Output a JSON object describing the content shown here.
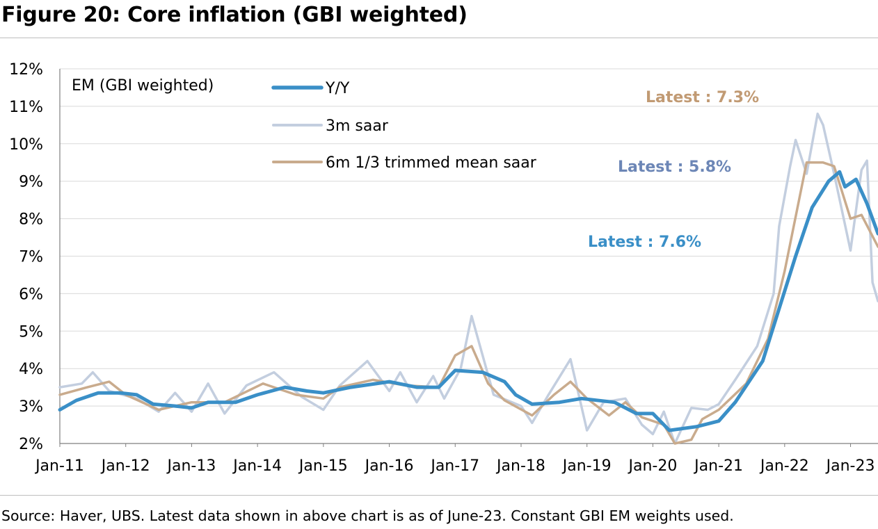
{
  "figure_title": "Figure 20: Core inflation (GBI weighted)",
  "source_note": "Source: Haver, UBS. Latest data shown in above chart is as of June-23. Constant GBI EM weights used.",
  "chart_data": {
    "type": "line",
    "title": "Figure 20: Core inflation (GBI weighted)",
    "panel_label": "EM (GBI weighted)",
    "xlabel": "",
    "ylabel": "",
    "x_start": "Jan-11",
    "x_end": "Jun-23",
    "x_ticks": [
      "Jan-11",
      "Jan-12",
      "Jan-13",
      "Jan-14",
      "Jan-15",
      "Jan-16",
      "Jan-17",
      "Jan-18",
      "Jan-19",
      "Jan-20",
      "Jan-21",
      "Jan-22",
      "Jan-23"
    ],
    "y_ticks": [
      "2%",
      "3%",
      "4%",
      "5%",
      "6%",
      "7%",
      "8%",
      "9%",
      "10%",
      "11%",
      "12%"
    ],
    "ylim": [
      2,
      12
    ],
    "grid": true,
    "legend_position": "top-left",
    "series": [
      {
        "name": "Y/Y",
        "color": "#3a8fc7",
        "width": 5,
        "points": [
          [
            "Jan-11",
            2.9
          ],
          [
            "Apr-11",
            3.15
          ],
          [
            "Aug-11",
            3.35
          ],
          [
            "Dec-11",
            3.35
          ],
          [
            "Mar-12",
            3.3
          ],
          [
            "Jun-12",
            3.05
          ],
          [
            "Oct-12",
            3.0
          ],
          [
            "Jan-13",
            2.95
          ],
          [
            "Apr-13",
            3.1
          ],
          [
            "Sep-13",
            3.1
          ],
          [
            "Jan-14",
            3.3
          ],
          [
            "Jun-14",
            3.5
          ],
          [
            "Oct-14",
            3.4
          ],
          [
            "Jan-15",
            3.35
          ],
          [
            "Jun-15",
            3.5
          ],
          [
            "Jan-16",
            3.65
          ],
          [
            "Jun-16",
            3.5
          ],
          [
            "Oct-16",
            3.5
          ],
          [
            "Jan-17",
            3.95
          ],
          [
            "Jun-17",
            3.9
          ],
          [
            "Oct-17",
            3.65
          ],
          [
            "Dec-17",
            3.3
          ],
          [
            "Mar-18",
            3.05
          ],
          [
            "Aug-18",
            3.1
          ],
          [
            "Dec-18",
            3.2
          ],
          [
            "Jun-19",
            3.1
          ],
          [
            "Oct-19",
            2.8
          ],
          [
            "Jan-20",
            2.8
          ],
          [
            "Apr-20",
            2.35
          ],
          [
            "Sep-20",
            2.45
          ],
          [
            "Jan-21",
            2.6
          ],
          [
            "Apr-21",
            3.1
          ],
          [
            "Sep-21",
            4.2
          ],
          [
            "Dec-21",
            5.6
          ],
          [
            "Mar-22",
            7.0
          ],
          [
            "Jun-22",
            8.3
          ],
          [
            "Sep-22",
            9.0
          ],
          [
            "Nov-22",
            9.25
          ],
          [
            "Dec-22",
            8.85
          ],
          [
            "Feb-23",
            9.05
          ],
          [
            "Apr-23",
            8.4
          ],
          [
            "Jun-23",
            7.6
          ]
        ]
      },
      {
        "name": "3m saar",
        "color": "#c3cedf",
        "width": 3.5,
        "points": [
          [
            "Jan-11",
            3.5
          ],
          [
            "May-11",
            3.6
          ],
          [
            "Jul-11",
            3.9
          ],
          [
            "Oct-11",
            3.4
          ],
          [
            "Mar-12",
            3.2
          ],
          [
            "Jul-12",
            2.85
          ],
          [
            "Oct-12",
            3.35
          ],
          [
            "Jan-13",
            2.85
          ],
          [
            "Apr-13",
            3.6
          ],
          [
            "Jul-13",
            2.8
          ],
          [
            "Nov-13",
            3.55
          ],
          [
            "Apr-14",
            3.9
          ],
          [
            "Sep-14",
            3.25
          ],
          [
            "Jan-15",
            2.9
          ],
          [
            "Apr-15",
            3.55
          ],
          [
            "Sep-15",
            4.2
          ],
          [
            "Jan-16",
            3.4
          ],
          [
            "Mar-16",
            3.9
          ],
          [
            "Jun-16",
            3.1
          ],
          [
            "Sep-16",
            3.8
          ],
          [
            "Nov-16",
            3.2
          ],
          [
            "Feb-17",
            4.0
          ],
          [
            "Apr-17",
            5.4
          ],
          [
            "Aug-17",
            3.3
          ],
          [
            "Jan-18",
            3.0
          ],
          [
            "Mar-18",
            2.55
          ],
          [
            "Jun-18",
            3.3
          ],
          [
            "Oct-18",
            4.25
          ],
          [
            "Jan-19",
            2.35
          ],
          [
            "Apr-19",
            3.1
          ],
          [
            "Aug-19",
            3.2
          ],
          [
            "Nov-19",
            2.5
          ],
          [
            "Jan-20",
            2.25
          ],
          [
            "Mar-20",
            2.85
          ],
          [
            "May-20",
            2.0
          ],
          [
            "Aug-20",
            2.95
          ],
          [
            "Nov-20",
            2.9
          ],
          [
            "Jan-21",
            3.05
          ],
          [
            "Apr-21",
            3.7
          ],
          [
            "Aug-21",
            4.6
          ],
          [
            "Nov-21",
            6.0
          ],
          [
            "Dec-21",
            7.8
          ],
          [
            "Feb-22",
            9.4
          ],
          [
            "Mar-22",
            10.1
          ],
          [
            "May-22",
            9.2
          ],
          [
            "Jul-22",
            10.8
          ],
          [
            "Aug-22",
            10.5
          ],
          [
            "Oct-22",
            9.2
          ],
          [
            "Jan-23",
            7.15
          ],
          [
            "Mar-23",
            9.3
          ],
          [
            "Apr-23",
            9.55
          ],
          [
            "May-23",
            6.3
          ],
          [
            "Jun-23",
            5.8
          ]
        ]
      },
      {
        "name": "6m 1/3 trimmed mean saar",
        "color": "#c9ab8d",
        "width": 3.5,
        "points": [
          [
            "Jan-11",
            3.3
          ],
          [
            "Jun-11",
            3.5
          ],
          [
            "Oct-11",
            3.65
          ],
          [
            "Jan-12",
            3.3
          ],
          [
            "Jul-12",
            2.9
          ],
          [
            "Jan-13",
            3.1
          ],
          [
            "Jul-13",
            3.1
          ],
          [
            "Feb-14",
            3.6
          ],
          [
            "Aug-14",
            3.3
          ],
          [
            "Jan-15",
            3.2
          ],
          [
            "Apr-15",
            3.5
          ],
          [
            "Oct-15",
            3.7
          ],
          [
            "Apr-16",
            3.55
          ],
          [
            "Oct-16",
            3.5
          ],
          [
            "Jan-17",
            4.35
          ],
          [
            "Apr-17",
            4.6
          ],
          [
            "Jul-17",
            3.6
          ],
          [
            "Oct-17",
            3.15
          ],
          [
            "Mar-18",
            2.75
          ],
          [
            "Jul-18",
            3.3
          ],
          [
            "Oct-18",
            3.65
          ],
          [
            "Jan-19",
            3.2
          ],
          [
            "May-19",
            2.75
          ],
          [
            "Aug-19",
            3.1
          ],
          [
            "Nov-19",
            2.7
          ],
          [
            "Mar-20",
            2.5
          ],
          [
            "May-20",
            2.0
          ],
          [
            "Aug-20",
            2.1
          ],
          [
            "Oct-20",
            2.65
          ],
          [
            "Jan-21",
            2.9
          ],
          [
            "Jun-21",
            3.6
          ],
          [
            "Oct-21",
            4.8
          ],
          [
            "Jan-22",
            6.6
          ],
          [
            "May-22",
            9.5
          ],
          [
            "Aug-22",
            9.5
          ],
          [
            "Oct-22",
            9.4
          ],
          [
            "Jan-23",
            8.0
          ],
          [
            "Mar-23",
            8.1
          ],
          [
            "Jun-23",
            7.25
          ]
        ]
      }
    ],
    "annotations": [
      {
        "text": "Latest : 7.3%",
        "color": "#c19a73",
        "series": "6m 1/3 trimmed mean saar"
      },
      {
        "text": "Latest : 5.8%",
        "color": "#6c86b6",
        "series": "3m saar"
      },
      {
        "text": "Latest : 7.6%",
        "color": "#3a8fc7",
        "series": "Y/Y"
      }
    ]
  }
}
